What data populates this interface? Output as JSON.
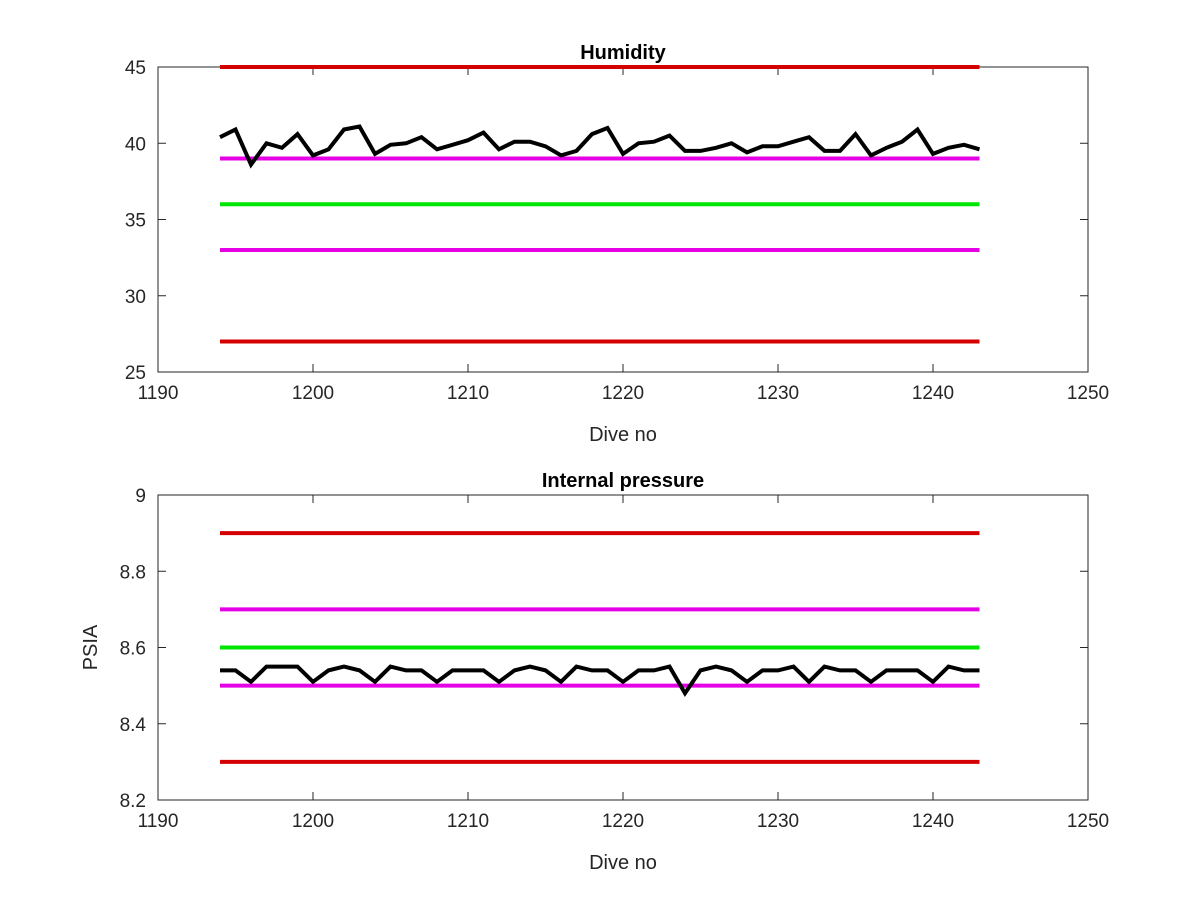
{
  "chart_data": [
    {
      "type": "line",
      "title": "Humidity",
      "xlabel": "Dive no",
      "ylabel": "",
      "xlim": [
        1190,
        1250
      ],
      "ylim": [
        25,
        45
      ],
      "xticks": [
        1190,
        1200,
        1210,
        1220,
        1230,
        1240,
        1250
      ],
      "yticks": [
        25,
        30,
        35,
        40,
        45
      ],
      "grid": false,
      "series": [
        {
          "color": "#d40000",
          "x": [
            1194,
            1243
          ],
          "values": [
            45,
            45
          ]
        },
        {
          "color": "#e600e6",
          "x": [
            1194,
            1243
          ],
          "values": [
            39,
            39
          ]
        },
        {
          "color": "#00e600",
          "x": [
            1194,
            1243
          ],
          "values": [
            36,
            36
          ]
        },
        {
          "color": "#e600e6",
          "x": [
            1194,
            1243
          ],
          "values": [
            33,
            33
          ]
        },
        {
          "color": "#d40000",
          "x": [
            1194,
            1243
          ],
          "values": [
            27,
            27
          ]
        },
        {
          "color": "#000000",
          "x": [
            1194,
            1195,
            1196,
            1197,
            1198,
            1199,
            1200,
            1201,
            1202,
            1203,
            1204,
            1205,
            1206,
            1207,
            1208,
            1209,
            1210,
            1211,
            1212,
            1213,
            1214,
            1215,
            1216,
            1217,
            1218,
            1219,
            1220,
            1221,
            1222,
            1223,
            1224,
            1225,
            1226,
            1227,
            1228,
            1229,
            1230,
            1231,
            1232,
            1233,
            1234,
            1235,
            1236,
            1237,
            1238,
            1239,
            1240,
            1241,
            1242,
            1243
          ],
          "values": [
            40.4,
            40.9,
            38.6,
            40.0,
            39.7,
            40.6,
            39.2,
            39.6,
            40.9,
            41.1,
            39.3,
            39.9,
            40.0,
            40.4,
            39.6,
            39.9,
            40.2,
            40.7,
            39.6,
            40.1,
            40.1,
            39.8,
            39.2,
            39.5,
            40.6,
            41.0,
            39.3,
            40.0,
            40.1,
            40.5,
            39.5,
            39.5,
            39.7,
            40.0,
            39.4,
            39.8,
            39.8,
            40.1,
            40.4,
            39.5,
            39.5,
            40.6,
            39.2,
            39.7,
            40.1,
            40.9,
            39.3,
            39.7,
            39.9,
            39.6
          ]
        }
      ]
    },
    {
      "type": "line",
      "title": "Internal pressure",
      "xlabel": "Dive no",
      "ylabel": "PSIA",
      "xlim": [
        1190,
        1250
      ],
      "ylim": [
        8.2,
        9.0
      ],
      "xticks": [
        1190,
        1200,
        1210,
        1220,
        1230,
        1240,
        1250
      ],
      "yticks": [
        "8.2",
        "8.4",
        "8.6",
        "8.8",
        "9"
      ],
      "grid": false,
      "series": [
        {
          "color": "#d40000",
          "x": [
            1194,
            1243
          ],
          "values": [
            8.9,
            8.9
          ]
        },
        {
          "color": "#e600e6",
          "x": [
            1194,
            1243
          ],
          "values": [
            8.7,
            8.7
          ]
        },
        {
          "color": "#00e600",
          "x": [
            1194,
            1243
          ],
          "values": [
            8.6,
            8.6
          ]
        },
        {
          "color": "#e600e6",
          "x": [
            1194,
            1243
          ],
          "values": [
            8.5,
            8.5
          ]
        },
        {
          "color": "#d40000",
          "x": [
            1194,
            1243
          ],
          "values": [
            8.3,
            8.3
          ]
        },
        {
          "color": "#000000",
          "x": [
            1194,
            1195,
            1196,
            1197,
            1198,
            1199,
            1200,
            1201,
            1202,
            1203,
            1204,
            1205,
            1206,
            1207,
            1208,
            1209,
            1210,
            1211,
            1212,
            1213,
            1214,
            1215,
            1216,
            1217,
            1218,
            1219,
            1220,
            1221,
            1222,
            1223,
            1224,
            1225,
            1226,
            1227,
            1228,
            1229,
            1230,
            1231,
            1232,
            1233,
            1234,
            1235,
            1236,
            1237,
            1238,
            1239,
            1240,
            1241,
            1242,
            1243
          ],
          "values": [
            8.54,
            8.54,
            8.51,
            8.55,
            8.55,
            8.55,
            8.51,
            8.54,
            8.55,
            8.54,
            8.51,
            8.55,
            8.54,
            8.54,
            8.51,
            8.54,
            8.54,
            8.54,
            8.51,
            8.54,
            8.55,
            8.54,
            8.51,
            8.55,
            8.54,
            8.54,
            8.51,
            8.54,
            8.54,
            8.55,
            8.48,
            8.54,
            8.55,
            8.54,
            8.51,
            8.54,
            8.54,
            8.55,
            8.51,
            8.55,
            8.54,
            8.54,
            8.51,
            8.54,
            8.54,
            8.54,
            8.51,
            8.55,
            8.54,
            8.54
          ]
        }
      ]
    }
  ]
}
